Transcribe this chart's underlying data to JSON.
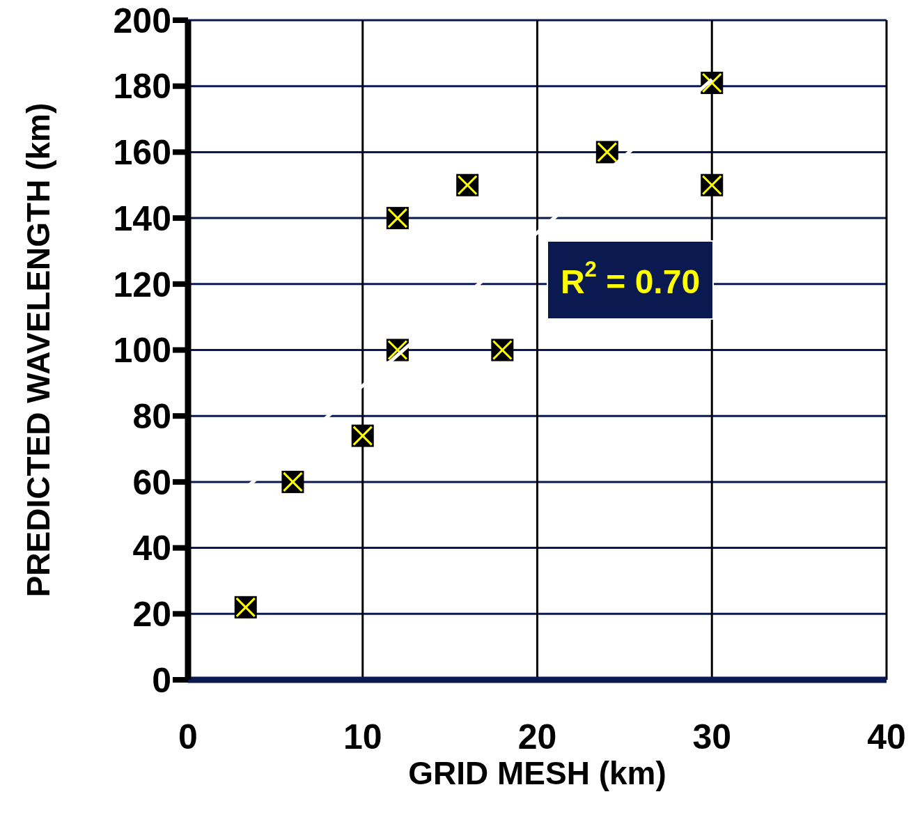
{
  "chart_data": {
    "type": "scatter",
    "xlabel": "GRID MESH (km)",
    "ylabel": "PREDICTED WAVELENGTH (km)",
    "series": [
      {
        "color": "#000000",
        "x": [
          3.3,
          6,
          10,
          12,
          12,
          16,
          18,
          24,
          30,
          30
        ],
        "values": [
          22,
          60,
          74,
          140,
          100,
          150,
          100,
          160,
          181,
          150
        ]
      },
      {
        "type": "line",
        "color": "#ffffff",
        "marker": "none",
        "x": [
          3.5,
          30
        ],
        "values": [
          59,
          182
        ]
      }
    ],
    "xlim": [
      0,
      40
    ],
    "xticks": [
      0,
      10,
      20,
      30,
      40
    ],
    "ylim": [
      0,
      200
    ],
    "yticks": [
      0,
      20,
      40,
      60,
      80,
      100,
      120,
      140,
      160,
      180,
      200
    ],
    "grid": true,
    "marker": "square",
    "legend": false,
    "annotations": [
      "R$^{2}$ = 0.70"
    ]
  }
}
